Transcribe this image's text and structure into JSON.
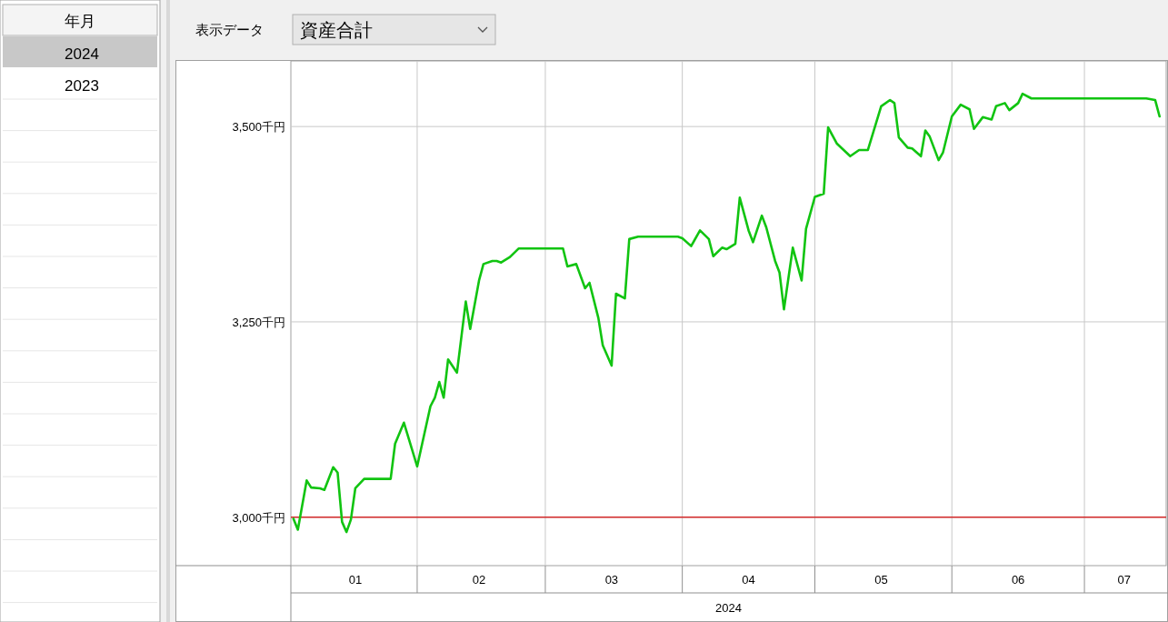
{
  "chart_data": {
    "type": "line",
    "title": "資産合計",
    "xlabel": "2024",
    "annotations": [
      "年月",
      "2024",
      "2023",
      "表示データ"
    ],
    "grid": true,
    "xlim": [
      "2024-01-03T10:00",
      "2024-07-19T12:00"
    ],
    "xticks": [
      {
        "value": "2024-01-18",
        "label": "01"
      },
      {
        "value": "2024-02-01",
        "label": null
      },
      {
        "value": "2024-02-15",
        "label": "02"
      },
      {
        "value": "2024-03-01",
        "label": null
      },
      {
        "value": "2024-03-16",
        "label": "03"
      },
      {
        "value": "2024-04-01",
        "label": null
      },
      {
        "value": "2024-04-16",
        "label": "04"
      },
      {
        "value": "2024-05-01",
        "label": null
      },
      {
        "value": "2024-05-16",
        "label": "05"
      },
      {
        "value": "2024-06-01",
        "label": null
      },
      {
        "value": "2024-06-16",
        "label": "06"
      },
      {
        "value": "2024-07-01",
        "label": null
      },
      {
        "value": "2024-07-10",
        "label": "07"
      }
    ],
    "ylim": [
      2938,
      3584
    ],
    "yticks": [
      {
        "value": 3000,
        "label": "3,000千円"
      },
      {
        "value": 3250,
        "label": "3,250千円"
      },
      {
        "value": 3500,
        "label": "3,500千円"
      }
    ],
    "ref_lines": [
      {
        "axis": "y",
        "value": 3000,
        "color": "#d42a2a"
      }
    ],
    "x": [
      "2024-01-04",
      "2024-01-05",
      "2024-01-07",
      "2024-01-08",
      "2024-01-10",
      "2024-01-11",
      "2024-01-13",
      "2024-01-14",
      "2024-01-15",
      "2024-01-16",
      "2024-01-17",
      "2024-01-18",
      "2024-01-20",
      "2024-01-26",
      "2024-01-27",
      "2024-01-29",
      "2024-02-01",
      "2024-02-04",
      "2024-02-05",
      "2024-02-06",
      "2024-02-07",
      "2024-02-08",
      "2024-02-10",
      "2024-02-12",
      "2024-02-13",
      "2024-02-15",
      "2024-02-16",
      "2024-02-18",
      "2024-02-19",
      "2024-02-20",
      "2024-02-22",
      "2024-02-24",
      "2024-03-05",
      "2024-03-06",
      "2024-03-08",
      "2024-03-10",
      "2024-03-11",
      "2024-03-13",
      "2024-03-14",
      "2024-03-16",
      "2024-03-17",
      "2024-03-19",
      "2024-03-20",
      "2024-03-22",
      "2024-03-31",
      "2024-04-01",
      "2024-04-03",
      "2024-04-05",
      "2024-04-07",
      "2024-04-08",
      "2024-04-10",
      "2024-04-11",
      "2024-04-13",
      "2024-04-14",
      "2024-04-16",
      "2024-04-17",
      "2024-04-19",
      "2024-04-20",
      "2024-04-22",
      "2024-04-23",
      "2024-04-24",
      "2024-04-26",
      "2024-04-28",
      "2024-04-29",
      "2024-05-01",
      "2024-05-03",
      "2024-05-04",
      "2024-05-06",
      "2024-05-09",
      "2024-05-11",
      "2024-05-13",
      "2024-05-16",
      "2024-05-18",
      "2024-05-19",
      "2024-05-20",
      "2024-05-22",
      "2024-05-23",
      "2024-05-25",
      "2024-05-26",
      "2024-05-27",
      "2024-05-29",
      "2024-05-30",
      "2024-06-01",
      "2024-06-03",
      "2024-06-05",
      "2024-06-06",
      "2024-06-08",
      "2024-06-10",
      "2024-06-11",
      "2024-06-13",
      "2024-06-14",
      "2024-06-16",
      "2024-06-17",
      "2024-06-19",
      "2024-07-15",
      "2024-07-17",
      "2024-07-18"
    ],
    "series": [
      {
        "color": "#11c411",
        "values": [
          2998,
          2984,
          3047,
          3038,
          3037,
          3035,
          3064,
          3057,
          2994,
          2981,
          2997,
          3037,
          3049,
          3049,
          3094,
          3121,
          3065,
          3142,
          3153,
          3173,
          3153,
          3202,
          3185,
          3276,
          3241,
          3303,
          3324,
          3328,
          3328,
          3326,
          3333,
          3344,
          3344,
          3321,
          3324,
          3293,
          3300,
          3255,
          3220,
          3194,
          3286,
          3280,
          3356,
          3359,
          3359,
          3357,
          3347,
          3367,
          3356,
          3334,
          3345,
          3343,
          3350,
          3409,
          3367,
          3352,
          3386,
          3371,
          3328,
          3313,
          3266,
          3345,
          3303,
          3369,
          3410,
          3414,
          3499,
          3478,
          3462,
          3470,
          3470,
          3526,
          3534,
          3530,
          3486,
          3473,
          3472,
          3462,
          3495,
          3487,
          3457,
          3467,
          3513,
          3528,
          3522,
          3497,
          3512,
          3509,
          3526,
          3530,
          3521,
          3530,
          3542,
          3536,
          3536,
          3534,
          3513
        ]
      }
    ]
  }
}
